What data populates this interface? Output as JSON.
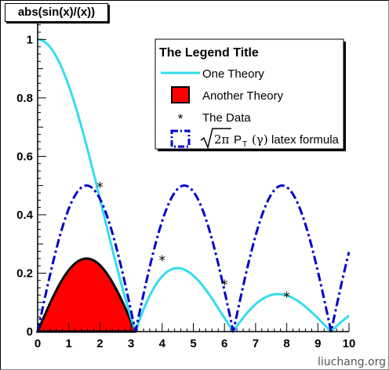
{
  "window": {
    "title": "abs(sin(x)/(x))"
  },
  "watermark": "liuchang.org",
  "chart_data": {
    "type": "line",
    "title": "abs(sin(x)/(x))",
    "xlim": [
      0,
      10
    ],
    "ylim": [
      0,
      1.06
    ],
    "xticks": [
      0,
      1,
      2,
      3,
      4,
      5,
      6,
      7,
      8,
      9,
      10
    ],
    "xtick_labels": [
      "0",
      "1",
      "2",
      "3",
      "4",
      "5",
      "6",
      "7",
      "8",
      "9",
      "10"
    ],
    "yticks": [
      0,
      0.2,
      0.4,
      0.6,
      0.8,
      1
    ],
    "ytick_labels": [
      "0",
      "0.2",
      "0.4",
      "0.6",
      "0.8",
      "1"
    ],
    "grid": false,
    "legend": {
      "title": "The Legend Title",
      "placement": "top-right",
      "entries": [
        {
          "label": "One Theory",
          "style": "line",
          "color": "#33ddee"
        },
        {
          "label": "Another Theory",
          "style": "fill",
          "color": "#ff0000"
        },
        {
          "label": "The Data",
          "style": "marker",
          "color": "#000000"
        },
        {
          "label": "√2π P_T (γ) latex formula",
          "style": "dashdot",
          "color": "#0000cc",
          "latex_text": "latex formula"
        }
      ]
    },
    "series": [
      {
        "name": "One Theory",
        "kind": "line",
        "color": "#33ddee",
        "formula": "abs(sin(x)/x)",
        "x_start": 0,
        "x_end": 10
      },
      {
        "name": "latex formula",
        "kind": "dashdot",
        "color": "#0000cc",
        "formula": "0.5*abs(sin(x))",
        "x_start": 0,
        "x_end": 10
      },
      {
        "name": "Another Theory",
        "kind": "area",
        "color": "#ff0000",
        "outline": "#000000",
        "formula": "0.25*sin(x)",
        "x_start": 0,
        "x_end": 3.1416
      },
      {
        "name": "The Data",
        "kind": "scatter",
        "color": "#000000",
        "marker": "*",
        "x": [
          2,
          4,
          6,
          8
        ],
        "y": [
          0.5,
          0.25,
          0.1667,
          0.125
        ]
      }
    ]
  }
}
